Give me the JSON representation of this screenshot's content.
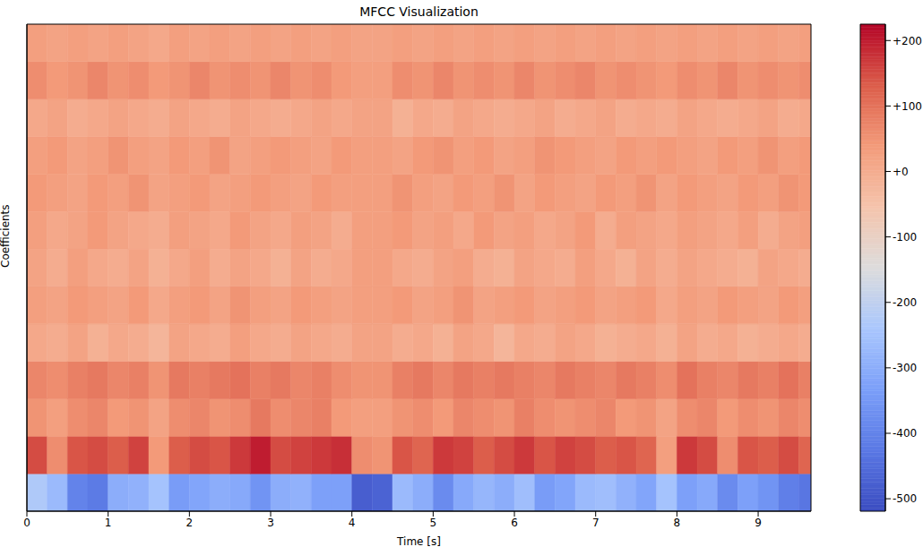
{
  "chart_data": {
    "type": "heatmap",
    "title": "MFCC Visualization",
    "x_label": "Time [s]",
    "y_label": "Coefficients",
    "x": [
      0,
      0.25,
      0.5,
      0.75,
      1,
      1.25,
      1.5,
      1.75,
      2,
      2.25,
      2.5,
      2.75,
      3,
      3.25,
      3.5,
      3.75,
      4,
      4.25,
      4.5,
      4.75,
      5,
      5.25,
      5.5,
      5.75,
      6,
      6.25,
      6.5,
      6.75,
      7,
      7.25,
      7.5,
      7.75,
      8,
      8.25,
      8.5,
      8.75,
      9,
      9.25,
      9.5
    ],
    "y": [
      0,
      1,
      2,
      3,
      4,
      5,
      6,
      7,
      8,
      9,
      10,
      11,
      12
    ],
    "xlim": [
      0,
      9.65
    ],
    "xticks": [
      0,
      1,
      2,
      3,
      4,
      5,
      6,
      7,
      8,
      9
    ],
    "ylim": [
      0,
      13
    ],
    "tick_labels": "x",
    "cells": [
      [
        -230,
        -270,
        -400,
        -420,
        -300,
        -290,
        -250,
        -340,
        -320,
        -300,
        -310,
        -360,
        -300,
        -290,
        -330,
        -330,
        -480,
        -470,
        -270,
        -300,
        -380,
        -310,
        -280,
        -300,
        -260,
        -340,
        -320,
        -270,
        -260,
        -290,
        -320,
        -250,
        -330,
        -310,
        -380,
        -330,
        -360,
        -410,
        -430
      ],
      [
        150,
        60,
        140,
        150,
        130,
        160,
        40,
        130,
        150,
        140,
        170,
        200,
        150,
        160,
        170,
        180,
        60,
        50,
        140,
        120,
        170,
        160,
        130,
        150,
        170,
        140,
        160,
        150,
        130,
        140,
        120,
        30,
        170,
        150,
        60,
        140,
        130,
        150,
        120
      ],
      [
        50,
        30,
        60,
        70,
        40,
        50,
        20,
        60,
        70,
        50,
        60,
        90,
        60,
        70,
        80,
        40,
        30,
        30,
        50,
        60,
        40,
        70,
        60,
        50,
        80,
        60,
        50,
        60,
        70,
        40,
        50,
        20,
        60,
        70,
        40,
        60,
        50,
        70,
        60
      ],
      [
        70,
        60,
        80,
        90,
        70,
        80,
        50,
        90,
        80,
        90,
        100,
        80,
        90,
        70,
        80,
        60,
        50,
        50,
        80,
        90,
        70,
        90,
        80,
        90,
        80,
        70,
        90,
        80,
        70,
        90,
        80,
        60,
        100,
        80,
        70,
        90,
        80,
        100,
        80
      ],
      [
        10,
        0,
        20,
        -10,
        10,
        0,
        -20,
        20,
        10,
        0,
        30,
        10,
        0,
        20,
        10,
        0,
        20,
        20,
        0,
        10,
        -10,
        20,
        10,
        -20,
        10,
        0,
        20,
        10,
        -10,
        0,
        10,
        -10,
        20,
        0,
        10,
        -10,
        0,
        10,
        0
      ],
      [
        30,
        20,
        40,
        30,
        20,
        40,
        10,
        30,
        40,
        20,
        50,
        30,
        20,
        40,
        30,
        20,
        30,
        30,
        40,
        20,
        30,
        50,
        20,
        30,
        40,
        20,
        30,
        40,
        20,
        30,
        40,
        10,
        30,
        20,
        40,
        30,
        20,
        40,
        30
      ],
      [
        20,
        0,
        30,
        10,
        0,
        20,
        -10,
        10,
        30,
        0,
        20,
        10,
        -10,
        20,
        0,
        10,
        30,
        30,
        10,
        0,
        20,
        30,
        0,
        -10,
        20,
        10,
        0,
        30,
        10,
        -10,
        20,
        0,
        20,
        10,
        0,
        -10,
        20,
        10,
        0
      ],
      [
        30,
        10,
        20,
        40,
        20,
        10,
        0,
        30,
        20,
        10,
        40,
        20,
        10,
        30,
        20,
        0,
        30,
        30,
        40,
        20,
        30,
        10,
        40,
        20,
        30,
        10,
        20,
        40,
        0,
        30,
        20,
        10,
        30,
        20,
        10,
        30,
        0,
        20,
        30
      ],
      [
        40,
        30,
        20,
        40,
        30,
        50,
        20,
        30,
        40,
        20,
        30,
        40,
        30,
        20,
        40,
        30,
        30,
        30,
        50,
        30,
        20,
        40,
        30,
        50,
        20,
        40,
        30,
        20,
        40,
        30,
        50,
        20,
        40,
        30,
        20,
        40,
        30,
        50,
        40
      ],
      [
        30,
        40,
        20,
        30,
        50,
        30,
        20,
        40,
        30,
        50,
        20,
        30,
        40,
        30,
        20,
        40,
        30,
        30,
        20,
        40,
        50,
        30,
        40,
        20,
        30,
        50,
        40,
        30,
        20,
        40,
        30,
        40,
        30,
        20,
        40,
        30,
        50,
        30,
        40
      ],
      [
        10,
        20,
        0,
        10,
        20,
        10,
        0,
        20,
        10,
        0,
        20,
        10,
        0,
        10,
        20,
        10,
        20,
        20,
        -10,
        10,
        0,
        20,
        10,
        0,
        10,
        20,
        0,
        10,
        20,
        0,
        10,
        0,
        20,
        10,
        0,
        10,
        20,
        0,
        10
      ],
      [
        60,
        40,
        50,
        70,
        50,
        60,
        40,
        50,
        70,
        50,
        60,
        50,
        70,
        50,
        60,
        40,
        30,
        30,
        60,
        50,
        70,
        50,
        60,
        50,
        70,
        50,
        60,
        70,
        50,
        60,
        50,
        40,
        60,
        50,
        70,
        50,
        60,
        50,
        60
      ],
      [
        30,
        20,
        30,
        20,
        30,
        20,
        10,
        30,
        20,
        30,
        20,
        30,
        20,
        30,
        20,
        30,
        20,
        20,
        30,
        20,
        30,
        20,
        30,
        20,
        30,
        20,
        30,
        20,
        30,
        20,
        30,
        20,
        30,
        20,
        30,
        20,
        30,
        20,
        30
      ]
    ],
    "colorbar": {
      "range": [
        -519,
        225
      ],
      "ticks": [
        {
          "value": 200,
          "label": "+200"
        },
        {
          "value": 100,
          "label": "+100"
        },
        {
          "value": 0,
          "label": "+0"
        },
        {
          "value": -100,
          "label": "-100"
        },
        {
          "value": -200,
          "label": "-200"
        },
        {
          "value": -300,
          "label": "-300"
        },
        {
          "value": -400,
          "label": "-400"
        },
        {
          "value": -500,
          "label": "-500"
        }
      ]
    }
  }
}
